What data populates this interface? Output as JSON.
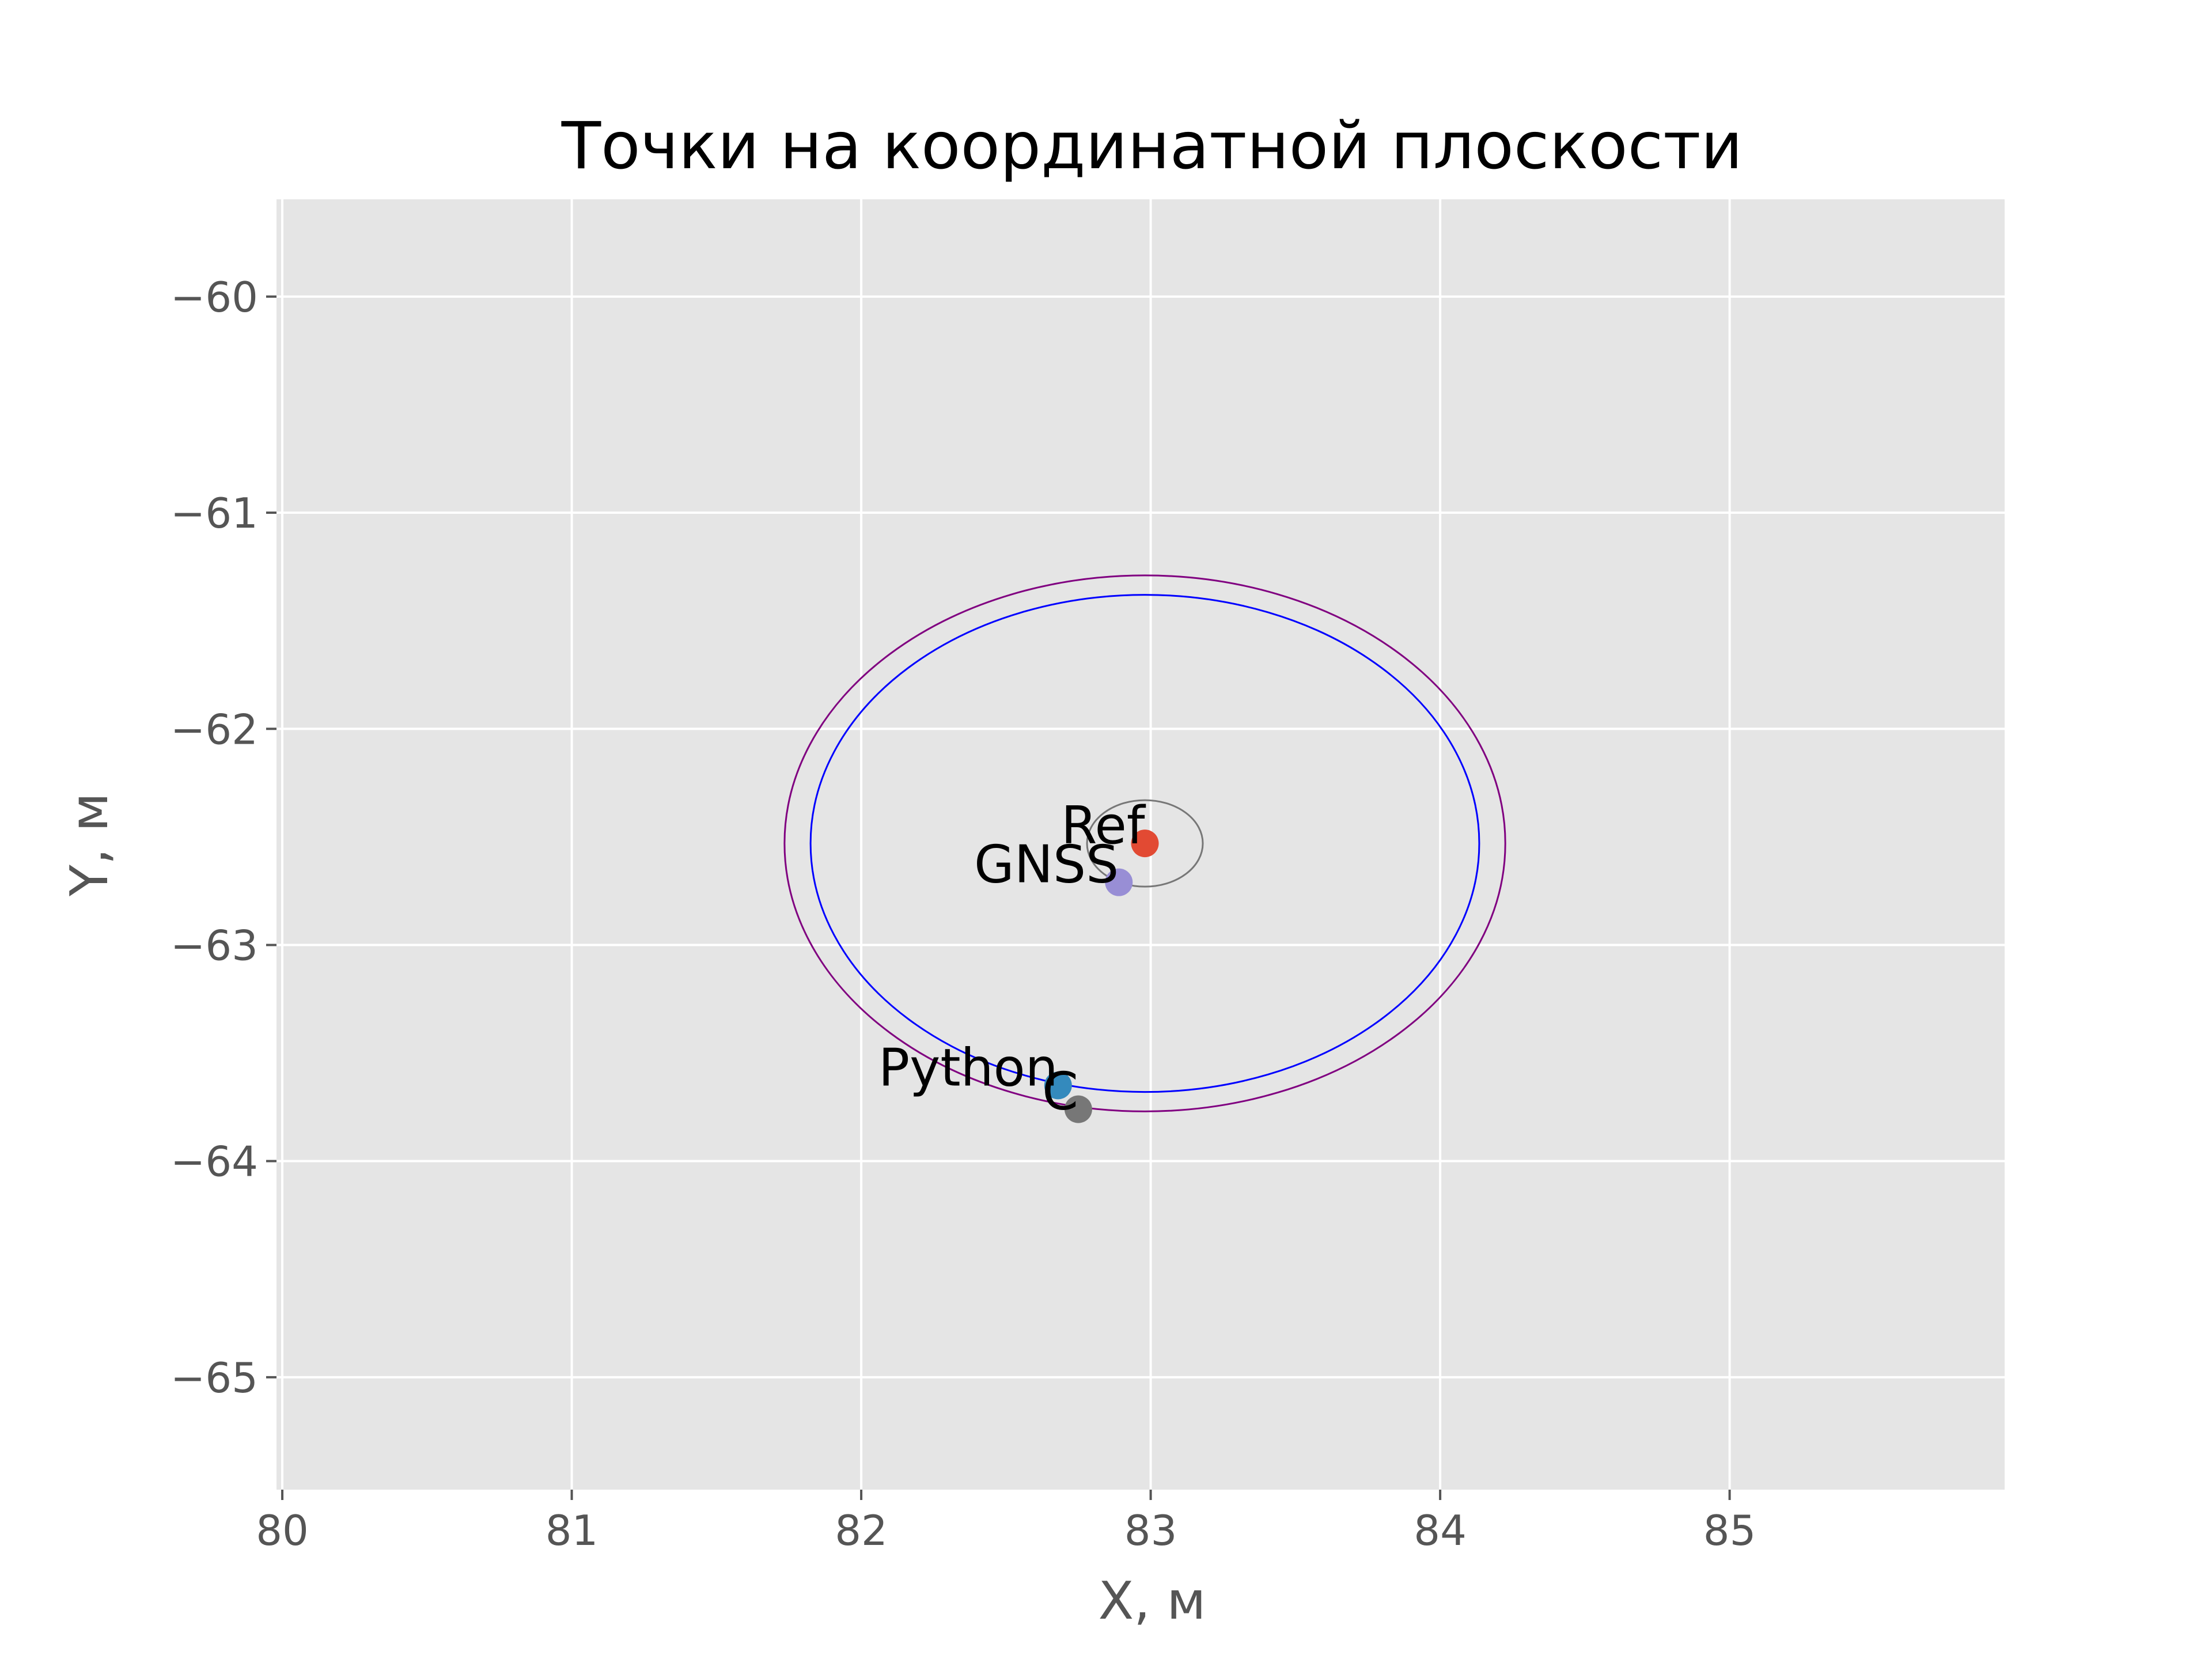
{
  "chart_data": {
    "type": "scatter",
    "title": "Точки на координатной плоскости",
    "xlabel": "X, м",
    "ylabel": "Y, м",
    "xlim": [
      79.98,
      85.95
    ],
    "ylim": [
      -65.52,
      -59.55
    ],
    "xticks": [
      80,
      81,
      82,
      83,
      84,
      85
    ],
    "xtick_labels": [
      "80",
      "81",
      "82",
      "83",
      "84",
      "85"
    ],
    "yticks": [
      -60,
      -61,
      -62,
      -63,
      -64,
      -65
    ],
    "ytick_labels": [
      "−60",
      "−61",
      "−62",
      "−63",
      "−64",
      "−65"
    ],
    "grid": true,
    "background": "#e5e5e5",
    "points": [
      {
        "label": "Ref",
        "x": 82.98,
        "y": -62.53,
        "color": "#e24a33"
      },
      {
        "label": "GNSS",
        "x": 82.89,
        "y": -62.71,
        "color": "#988ed5"
      },
      {
        "label": "Python",
        "x": 82.68,
        "y": -63.65,
        "color": "#348abd"
      },
      {
        "label": "C",
        "x": 82.75,
        "y": -63.76,
        "color": "#777777"
      }
    ],
    "ellipses": [
      {
        "cx": 82.98,
        "cy": -62.53,
        "rx": 1.245,
        "ry": 1.24,
        "color": "#800080"
      },
      {
        "cx": 82.98,
        "cy": -62.53,
        "rx": 1.155,
        "ry": 1.15,
        "color": "#0000ff"
      },
      {
        "cx": 82.98,
        "cy": -62.53,
        "rx": 0.2,
        "ry": 0.2,
        "color": "#777777"
      }
    ]
  }
}
